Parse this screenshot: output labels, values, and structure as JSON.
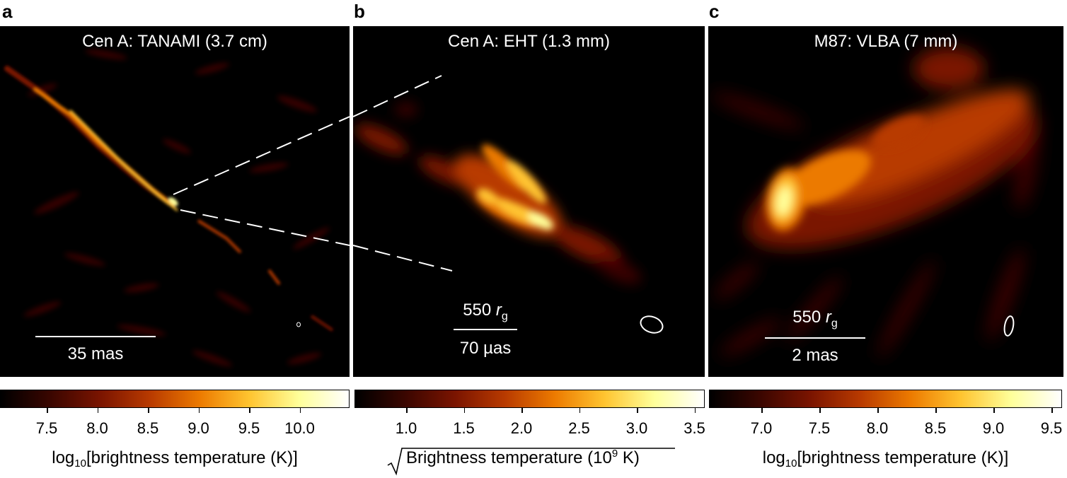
{
  "panels": [
    {
      "letter": "a",
      "title": "Cen A: TANAMI (3.7 cm)",
      "scalebar": {
        "bottom": "35 mas"
      },
      "colorbar": {
        "ticks": [
          "7.5",
          "8.0",
          "8.5",
          "9.0",
          "9.5",
          "10.0"
        ],
        "label_prefix": "log",
        "label_sub": "10",
        "label_rest": "[brightness temperature (K)]"
      }
    },
    {
      "letter": "b",
      "title": "Cen A: EHT (1.3 mm)",
      "scalebar": {
        "top_value": "550",
        "top_symbol": "r",
        "top_sub": "g",
        "bottom": "70 µas"
      },
      "colorbar": {
        "ticks": [
          "1.0",
          "1.5",
          "2.0",
          "2.5",
          "3.0",
          "3.5"
        ],
        "label_main": "Brightness temperature (10",
        "label_sup": "9",
        "label_end": " K)"
      }
    },
    {
      "letter": "c",
      "title": "M87: VLBA (7 mm)",
      "scalebar": {
        "top_value": "550",
        "top_symbol": "r",
        "top_sub": "g",
        "bottom": "2 mas"
      },
      "colorbar": {
        "ticks": [
          "7.0",
          "7.5",
          "8.0",
          "8.5",
          "9.0",
          "9.5"
        ],
        "label_prefix": "log",
        "label_sub": "10",
        "label_rest": "[brightness temperature (K)]"
      }
    }
  ],
  "colors": {
    "colormap": [
      "#000000",
      "#3a0600",
      "#7a1400",
      "#b83a00",
      "#ec7a00",
      "#ffc430",
      "#ffff9a",
      "#ffffff"
    ]
  }
}
